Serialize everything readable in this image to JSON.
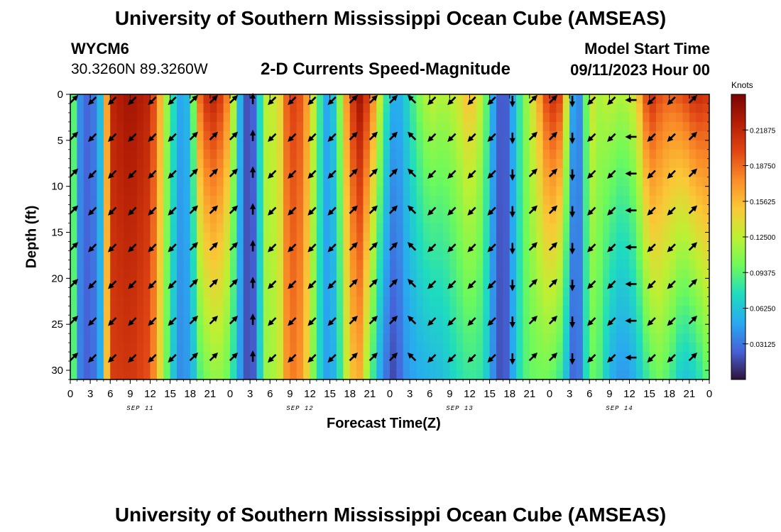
{
  "header": {
    "title": "University of Southern Mississippi Ocean Cube (AMSEAS)",
    "station": "WYCM6",
    "coords": "30.3260N  89.3260W",
    "subtitle": "2-D Currents Speed-Magnitude",
    "model_label": "Model Start Time",
    "model_time": "09/11/2023 Hour 00",
    "footer_title": "University of Southern Mississippi Ocean Cube (AMSEAS)"
  },
  "chart_data": {
    "type": "heatmap",
    "title": "2-D Currents Speed-Magnitude",
    "xlabel": "Forecast Time(Z)",
    "ylabel": "Depth (ft)",
    "xlim": [
      0,
      96
    ],
    "ylim": [
      31,
      0
    ],
    "x_tick_labels": [
      "0",
      "3",
      "6",
      "9",
      "12",
      "15",
      "18",
      "21",
      "0",
      "3",
      "6",
      "9",
      "12",
      "15",
      "18",
      "21",
      "0",
      "3",
      "6",
      "9",
      "12",
      "15",
      "18",
      "21",
      "0",
      "3",
      "6",
      "9",
      "12",
      "15",
      "18",
      "21",
      "0"
    ],
    "y_ticks": [
      0,
      5,
      10,
      15,
      20,
      25,
      30
    ],
    "date_labels": [
      "SEP 11",
      "SEP 12",
      "SEP 13",
      "SEP 14"
    ],
    "colorbar": {
      "label": "Knots",
      "min": 0.0,
      "max": 0.25,
      "tick_values": [
        0.03125,
        0.0625,
        0.09375,
        0.125,
        0.15625,
        0.1875,
        0.21875
      ],
      "tick_labels": [
        "0.03125",
        "0.06250",
        "0.09375",
        "0.12500",
        "0.15625",
        "0.18750",
        "0.21875"
      ]
    },
    "speed_profiles": [
      {
        "t": 0,
        "top": 0.12,
        "bottom": 0.12
      },
      {
        "t": 1.5,
        "top": 0.04,
        "bottom": 0.035
      },
      {
        "t": 3,
        "top": 0.02,
        "bottom": 0.02
      },
      {
        "t": 4.5,
        "top": 0.06,
        "bottom": 0.05
      },
      {
        "t": 6,
        "top": 0.22,
        "bottom": 0.205
      },
      {
        "t": 9,
        "top": 0.235,
        "bottom": 0.21
      },
      {
        "t": 12,
        "top": 0.22,
        "bottom": 0.195
      },
      {
        "t": 14,
        "top": 0.14,
        "bottom": 0.12
      },
      {
        "t": 15,
        "top": 0.09,
        "bottom": 0.075
      },
      {
        "t": 16.5,
        "top": 0.05,
        "bottom": 0.04
      },
      {
        "t": 18,
        "top": 0.06,
        "bottom": 0.045
      },
      {
        "t": 19.5,
        "top": 0.19,
        "bottom": 0.09
      },
      {
        "t": 21,
        "top": 0.23,
        "bottom": 0.11
      },
      {
        "t": 22.5,
        "top": 0.21,
        "bottom": 0.11
      },
      {
        "t": 24,
        "top": 0.17,
        "bottom": 0.095
      },
      {
        "t": 25,
        "top": 0.08,
        "bottom": 0.06
      },
      {
        "t": 26,
        "top": 0.03,
        "bottom": 0.03
      },
      {
        "t": 27,
        "top": 0.01,
        "bottom": 0.01
      },
      {
        "t": 28,
        "top": 0.04,
        "bottom": 0.035
      },
      {
        "t": 29,
        "top": 0.11,
        "bottom": 0.1
      },
      {
        "t": 30,
        "top": 0.14,
        "bottom": 0.125
      },
      {
        "t": 31,
        "top": 0.12,
        "bottom": 0.11
      },
      {
        "t": 32.5,
        "top": 0.19,
        "bottom": 0.17
      },
      {
        "t": 34,
        "top": 0.21,
        "bottom": 0.185
      },
      {
        "t": 35.5,
        "top": 0.17,
        "bottom": 0.145
      },
      {
        "t": 37,
        "top": 0.11,
        "bottom": 0.085
      },
      {
        "t": 38,
        "top": 0.06,
        "bottom": 0.055
      },
      {
        "t": 39,
        "top": 0.04,
        "bottom": 0.04
      },
      {
        "t": 40.5,
        "top": 0.11,
        "bottom": 0.08
      },
      {
        "t": 42,
        "top": 0.2,
        "bottom": 0.15
      },
      {
        "t": 43.5,
        "top": 0.235,
        "bottom": 0.16
      },
      {
        "t": 45,
        "top": 0.2,
        "bottom": 0.1
      },
      {
        "t": 46.5,
        "top": 0.13,
        "bottom": 0.05
      },
      {
        "t": 48,
        "top": 0.06,
        "bottom": 0.02
      },
      {
        "t": 49,
        "top": 0.05,
        "bottom": 0.015
      },
      {
        "t": 50,
        "top": 0.06,
        "bottom": 0.04
      },
      {
        "t": 52,
        "top": 0.1,
        "bottom": 0.05
      },
      {
        "t": 54,
        "top": 0.13,
        "bottom": 0.055
      },
      {
        "t": 56,
        "top": 0.12,
        "bottom": 0.06
      },
      {
        "t": 58,
        "top": 0.13,
        "bottom": 0.075
      },
      {
        "t": 60,
        "top": 0.16,
        "bottom": 0.085
      },
      {
        "t": 62,
        "top": 0.12,
        "bottom": 0.08
      },
      {
        "t": 63.5,
        "top": 0.05,
        "bottom": 0.04
      },
      {
        "t": 65,
        "top": 0.01,
        "bottom": 0.01
      },
      {
        "t": 66.5,
        "top": 0.05,
        "bottom": 0.05
      },
      {
        "t": 68,
        "top": 0.1,
        "bottom": 0.09
      },
      {
        "t": 70,
        "top": 0.15,
        "bottom": 0.1
      },
      {
        "t": 72,
        "top": 0.22,
        "bottom": 0.1
      },
      {
        "t": 74,
        "top": 0.2,
        "bottom": 0.08
      },
      {
        "t": 75,
        "top": 0.08,
        "bottom": 0.04
      },
      {
        "t": 76,
        "top": 0.02,
        "bottom": 0.015
      },
      {
        "t": 77,
        "top": 0.06,
        "bottom": 0.05
      },
      {
        "t": 78,
        "top": 0.14,
        "bottom": 0.1
      },
      {
        "t": 79.5,
        "top": 0.12,
        "bottom": 0.09
      },
      {
        "t": 81,
        "top": 0.13,
        "bottom": 0.055
      },
      {
        "t": 83,
        "top": 0.12,
        "bottom": 0.04
      },
      {
        "t": 85,
        "top": 0.14,
        "bottom": 0.055
      },
      {
        "t": 87,
        "top": 0.22,
        "bottom": 0.09
      },
      {
        "t": 88.5,
        "top": 0.2,
        "bottom": 0.1
      },
      {
        "t": 90,
        "top": 0.19,
        "bottom": 0.09
      },
      {
        "t": 92,
        "top": 0.2,
        "bottom": 0.06
      },
      {
        "t": 94,
        "top": 0.22,
        "bottom": 0.07
      },
      {
        "t": 96,
        "top": 0.21,
        "bottom": 0.1
      }
    ],
    "arrow_depths": [
      0,
      4,
      8,
      12,
      16,
      20,
      24,
      28
    ],
    "arrow_columns": [
      {
        "t": 0,
        "dir": "NE"
      },
      {
        "t": 3,
        "dir": "SW"
      },
      {
        "t": 6,
        "dir": "SW"
      },
      {
        "t": 9,
        "dir": "SW"
      },
      {
        "t": 12,
        "dir": "SW"
      },
      {
        "t": 15,
        "dir": "SW"
      },
      {
        "t": 18,
        "dir": "NE"
      },
      {
        "t": 21,
        "dir": "NE"
      },
      {
        "t": 24,
        "dir": "NE"
      },
      {
        "t": 27,
        "dir": "N"
      },
      {
        "t": 30,
        "dir": "SW"
      },
      {
        "t": 33,
        "dir": "SW"
      },
      {
        "t": 36,
        "dir": "SW"
      },
      {
        "t": 39,
        "dir": "SW"
      },
      {
        "t": 42,
        "dir": "NE"
      },
      {
        "t": 45,
        "dir": "NE"
      },
      {
        "t": 48,
        "dir": "NE"
      },
      {
        "t": 51,
        "dir": "NW"
      },
      {
        "t": 54,
        "dir": "SW"
      },
      {
        "t": 57,
        "dir": "SW"
      },
      {
        "t": 60,
        "dir": "SW"
      },
      {
        "t": 63,
        "dir": "SW"
      },
      {
        "t": 66,
        "dir": "S"
      },
      {
        "t": 69,
        "dir": "NE"
      },
      {
        "t": 72,
        "dir": "NE"
      },
      {
        "t": 75,
        "dir": "S"
      },
      {
        "t": 78,
        "dir": "SW"
      },
      {
        "t": 81,
        "dir": "SW"
      },
      {
        "t": 84,
        "dir": "W"
      },
      {
        "t": 87,
        "dir": "SW"
      },
      {
        "t": 90,
        "dir": "SW"
      },
      {
        "t": 93,
        "dir": "NE"
      }
    ]
  }
}
